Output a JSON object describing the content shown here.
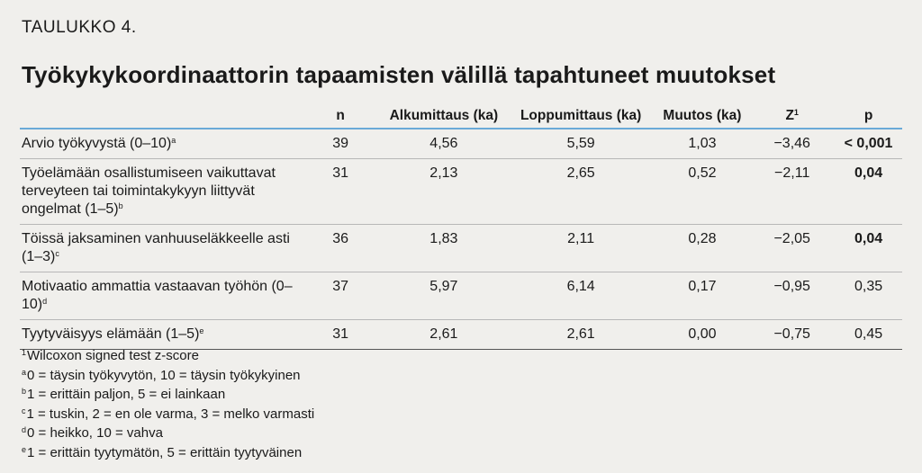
{
  "table_label": "TAULUKKO 4.",
  "title": "Työkykykoordinaattorin tapaamisten välillä tapahtuneet muutokset",
  "columns": {
    "variable": "",
    "n": "n",
    "baseline": "Alkumittaus (ka)",
    "final": "Loppumittaus (ka)",
    "change": "Muutos (ka)",
    "z": "Z",
    "z_sup": "1",
    "p": "p"
  },
  "rows": [
    {
      "variable": "Arvio työkyvystä (0–10)",
      "sup": "a",
      "n": "39",
      "baseline": "4,56",
      "final": "5,59",
      "change": "1,03",
      "z": "−3,46",
      "p": "< 0,001",
      "p_bold": true
    },
    {
      "variable": "Työelämään osallistumiseen vaikuttavat terveyteen tai toimintakykyyn liittyvät ongelmat (1–5)",
      "sup": "b",
      "n": "31",
      "baseline": "2,13",
      "final": "2,65",
      "change": "0,52",
      "z": "−2,11",
      "p": "0,04",
      "p_bold": true
    },
    {
      "variable": "Töissä jaksaminen vanhuuseläkkeelle asti (1–3)",
      "sup": "c",
      "n": "36",
      "baseline": "1,83",
      "final": "2,11",
      "change": "0,28",
      "z": "−2,05",
      "p": "0,04",
      "p_bold": true
    },
    {
      "variable": "Motivaatio ammattia vastaavan työhön (0–10)",
      "sup": "d",
      "n": "37",
      "baseline": "5,97",
      "final": "6,14",
      "change": "0,17",
      "z": "−0,95",
      "p": "0,35",
      "p_bold": false
    },
    {
      "variable": "Tyytyväisyys elämään (1–5)",
      "sup": "e",
      "n": "31",
      "baseline": "2,61",
      "final": "2,61",
      "change": "0,00",
      "z": "−0,75",
      "p": "0,45",
      "p_bold": false
    }
  ],
  "footnotes": [
    {
      "mark": "1",
      "text": "Wilcoxon signed test z-score"
    },
    {
      "mark": "a",
      "text": "0 = täysin työkyvytön, 10 = täysin työkykyinen"
    },
    {
      "mark": "b",
      "text": "1 = erittäin paljon, 5 = ei lainkaan"
    },
    {
      "mark": "c",
      "text": "1 = tuskin, 2 = en ole varma, 3 = melko varmasti"
    },
    {
      "mark": "d",
      "text": "0 = heikko, 10 = vahva"
    },
    {
      "mark": "e",
      "text": "1 = erittäin tyytymätön, 5 = erittäin tyytyväinen"
    }
  ],
  "colors": {
    "background": "#f0efec",
    "header_rule": "#6aaad8"
  }
}
